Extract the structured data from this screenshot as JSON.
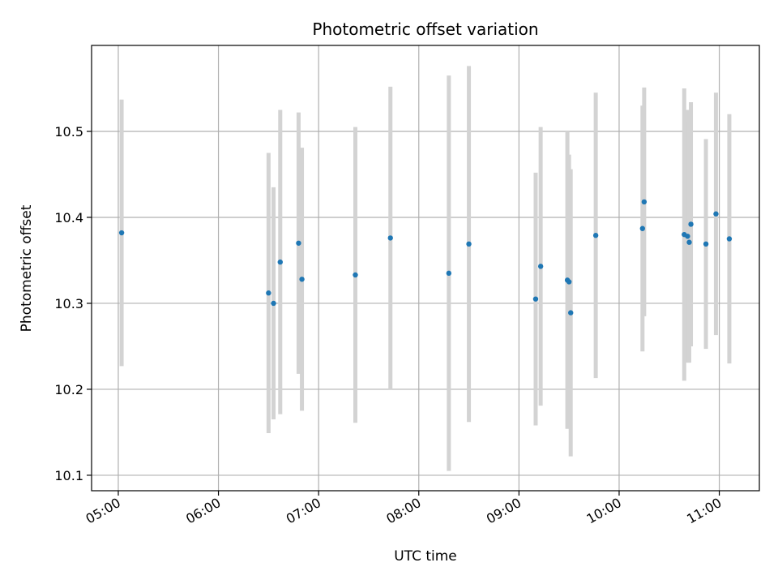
{
  "chart_data": {
    "type": "scatter",
    "title": "Photometric offset variation",
    "xlabel": "UTC time",
    "ylabel": "Photometric offset",
    "x_ticks": [
      "05:00",
      "06:00",
      "07:00",
      "08:00",
      "09:00",
      "10:00",
      "11:00"
    ],
    "y_ticks": [
      "10.1",
      "10.2",
      "10.3",
      "10.4",
      "10.5"
    ],
    "xlim": [
      "04:44",
      "11:24"
    ],
    "ylim": [
      10.082,
      10.6
    ],
    "grid": true,
    "colors": {
      "points": "#1f77b4",
      "errorbars": "#d3d3d3",
      "grid": "#b0b0b0"
    },
    "points": [
      {
        "t": "05:02",
        "y": 10.382,
        "err": 0.155
      },
      {
        "t": "06:30",
        "y": 10.312,
        "err": 0.163
      },
      {
        "t": "06:33",
        "y": 10.3,
        "err": 0.135
      },
      {
        "t": "06:37",
        "y": 10.348,
        "err": 0.177
      },
      {
        "t": "06:48",
        "y": 10.37,
        "err": 0.152
      },
      {
        "t": "06:50",
        "y": 10.328,
        "err": 0.153
      },
      {
        "t": "07:22",
        "y": 10.333,
        "err": 0.172
      },
      {
        "t": "07:43",
        "y": 10.376,
        "err": 0.176
      },
      {
        "t": "08:18",
        "y": 10.335,
        "err": 0.23
      },
      {
        "t": "08:30",
        "y": 10.369,
        "err": 0.207
      },
      {
        "t": "09:10",
        "y": 10.305,
        "err": 0.147
      },
      {
        "t": "09:13",
        "y": 10.343,
        "err": 0.162
      },
      {
        "t": "09:29",
        "y": 10.327,
        "err": 0.173
      },
      {
        "t": "09:30",
        "y": 10.325,
        "err": 0.148
      },
      {
        "t": "09:31",
        "y": 10.289,
        "err": 0.167
      },
      {
        "t": "09:46",
        "y": 10.379,
        "err": 0.166
      },
      {
        "t": "10:14",
        "y": 10.387,
        "err": 0.143
      },
      {
        "t": "10:15",
        "y": 10.418,
        "err": 0.133
      },
      {
        "t": "10:39",
        "y": 10.38,
        "err": 0.17
      },
      {
        "t": "10:41",
        "y": 10.378,
        "err": 0.147
      },
      {
        "t": "10:42",
        "y": 10.371,
        "err": 0.14
      },
      {
        "t": "10:43",
        "y": 10.392,
        "err": 0.142
      },
      {
        "t": "10:52",
        "y": 10.369,
        "err": 0.122
      },
      {
        "t": "10:58",
        "y": 10.404,
        "err": 0.141
      },
      {
        "t": "11:06",
        "y": 10.375,
        "err": 0.145
      }
    ]
  }
}
